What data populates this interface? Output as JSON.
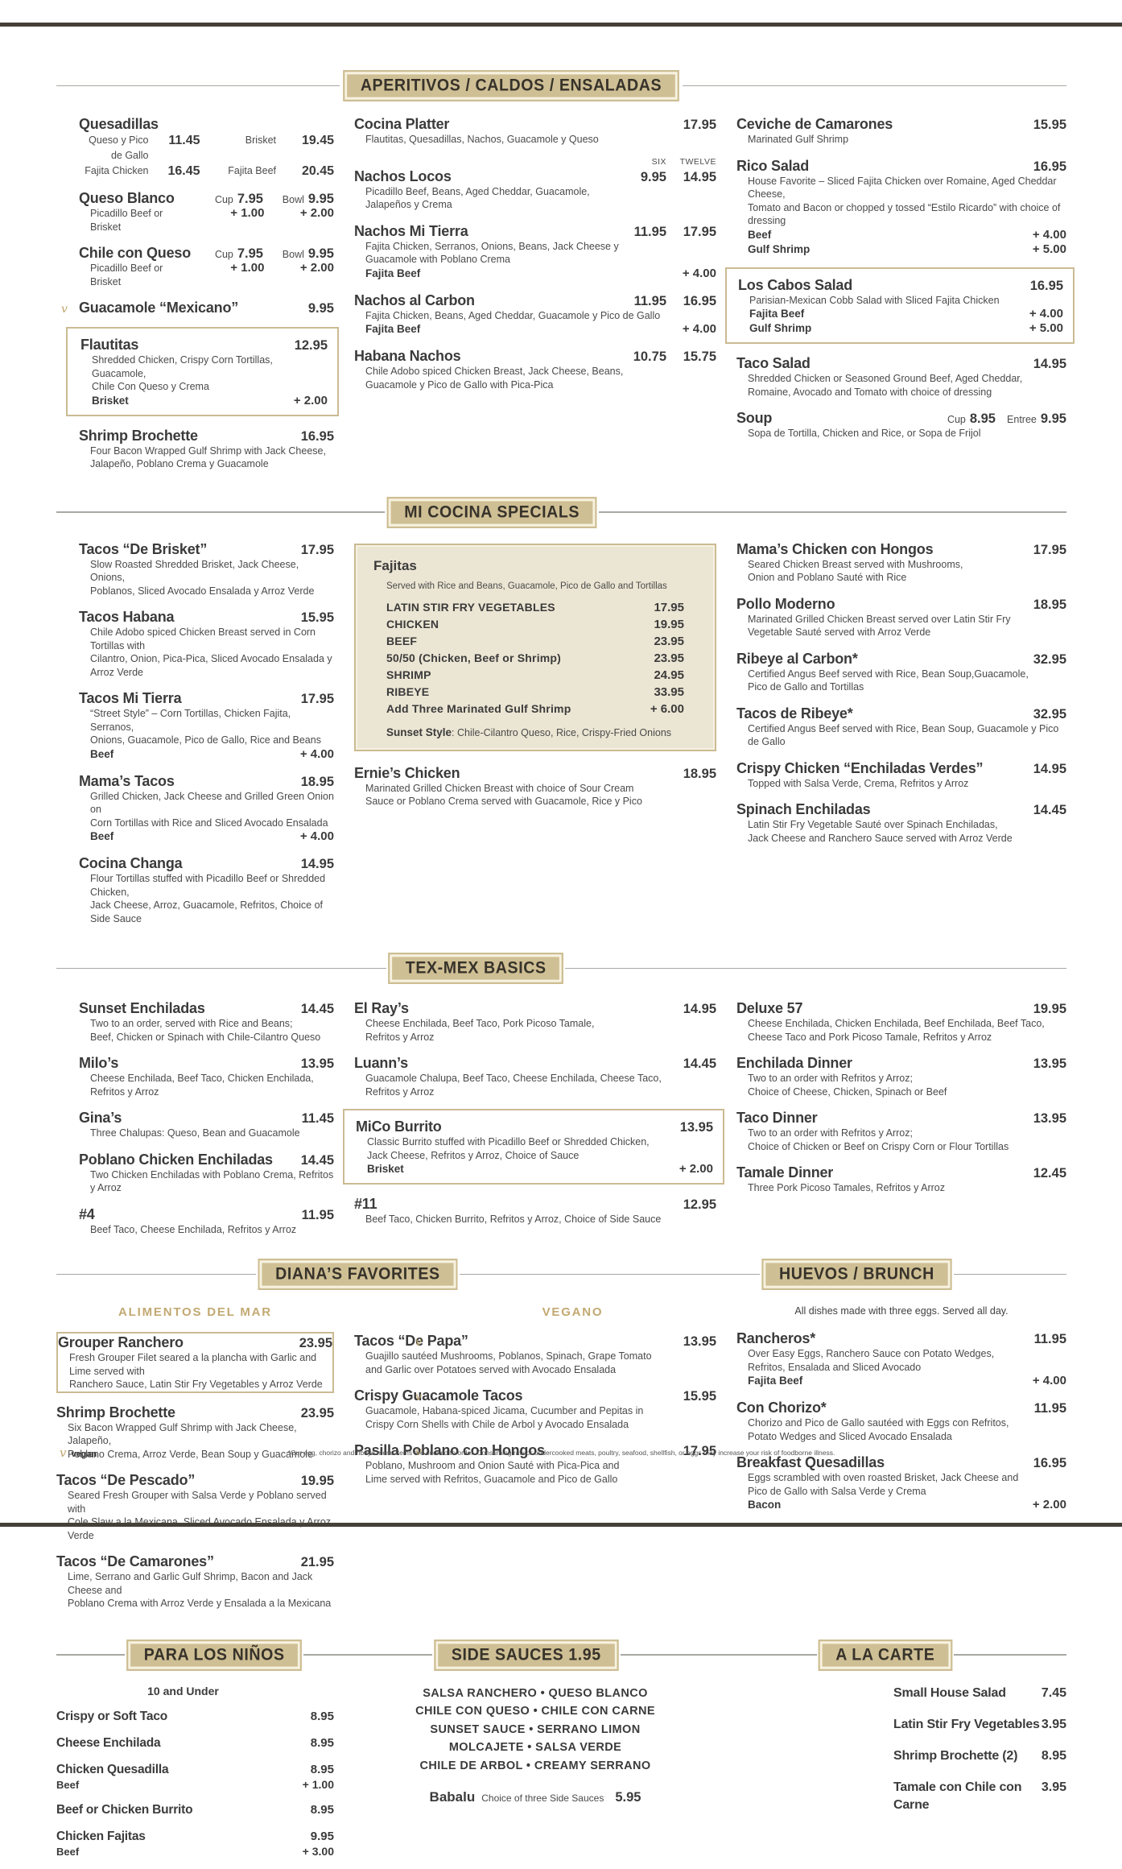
{
  "page": {
    "vegan_symbol": "v",
    "vegan_legend": "vegan",
    "disclaimer": "*Our egg, chorizo and ribeye menu items are cooked to order. Consuming raw or undercooked meats, poultry, seafood, shellfish, or eggs may increase your risk of foodborne illness."
  },
  "colors": {
    "tan_box": "#cfbf94",
    "tan_border": "#cbbb93",
    "tan_text": "#c2a972",
    "dark_text": "#3b3b3b",
    "bar": "#454038"
  },
  "headers": {
    "aperitivos": "APERITIVOS / CALDOS / ENSALADAS",
    "cocina": "MI COCINA SPECIALS",
    "texmex": "TEX-MEX BASICS",
    "dianas": "DIANA’S FAVORITES",
    "huevos": "HUEVOS / BRUNCH",
    "ninos": "PARA LOS NIÑOS",
    "sauces": "SIDE SAUCES  1.95",
    "alacarte": "A LA CARTE"
  },
  "sub_headers": {
    "mar": "ALIMENTOS DEL MAR",
    "vegano": "VEGANO",
    "huevos_note": "All dishes made with three eggs. Served all day.",
    "ninos_note": "10 and Under"
  },
  "sections": {
    "top_left": [
      {
        "name": "Quesadillas",
        "price_rows": [
          [
            {
              "label": "Queso y Pico de Gallo",
              "value": "11.45"
            },
            {
              "label": "Brisket",
              "value": "19.45"
            }
          ],
          [
            {
              "label": "Fajita Chicken",
              "value": "16.45"
            },
            {
              "label": "Fajita Beef",
              "value": "20.45"
            }
          ]
        ]
      },
      {
        "name": "Queso Blanco",
        "prices": [
          {
            "label": "Cup",
            "value": "7.95"
          },
          {
            "label": "Bowl",
            "value": "9.95"
          }
        ],
        "desc": [
          "Picadillo Beef or Brisket"
        ],
        "desc_prices": [
          "+ 1.00",
          "+ 2.00"
        ]
      },
      {
        "name": "Chile con Queso",
        "prices": [
          {
            "label": "Cup",
            "value": "7.95"
          },
          {
            "label": "Bowl",
            "value": "9.95"
          }
        ],
        "desc": [
          "Picadillo Beef or Brisket"
        ],
        "desc_prices": [
          "+ 1.00",
          "+ 2.00"
        ]
      },
      {
        "name": "Guacamole “Mexicano”",
        "vegan": true,
        "price": "9.95"
      },
      {
        "name": "Flautitas",
        "boxed": true,
        "price": "12.95",
        "desc": [
          "Shredded Chicken, Crispy Corn Tortillas, Guacamole,",
          "Chile Con Queso y Crema"
        ],
        "options": [
          {
            "name": "Brisket",
            "price": "+ 2.00"
          }
        ]
      },
      {
        "name": "Shrimp Brochette",
        "price": "16.95",
        "desc": [
          "Four Bacon Wrapped Gulf Shrimp with Jack Cheese,",
          "Jalapeño, Poblano Crema y Guacamole"
        ]
      }
    ],
    "aperitivos": [
      {
        "name": "Cocina Platter",
        "price": "17.95",
        "desc": [
          "Flautitas, Quesadillas, Nachos, Guacamole y Queso"
        ]
      },
      {
        "name": "Nachos Locos",
        "price_header": [
          "SIX",
          "TWELVE"
        ],
        "prices2": [
          "9.95",
          "14.95"
        ],
        "desc": [
          "Picadillo Beef, Beans, Aged Cheddar, Guacamole,",
          "Jalapeños y Crema"
        ]
      },
      {
        "name": "Nachos Mi Tierra",
        "prices2": [
          "11.95",
          "17.95"
        ],
        "desc": [
          "Fajita Chicken, Serranos, Onions, Beans, Jack Cheese y",
          "Guacamole with Poblano Crema"
        ],
        "options": [
          {
            "name": "Fajita Beef",
            "price": "+ 4.00"
          }
        ]
      },
      {
        "name": "Nachos al Carbon",
        "prices2": [
          "11.95",
          "16.95"
        ],
        "desc": [
          "Fajita Chicken, Beans, Aged Cheddar, Guacamole y Pico de Gallo"
        ],
        "options": [
          {
            "name": "Fajita Beef",
            "price": "+ 4.00"
          }
        ]
      },
      {
        "name": "Habana Nachos",
        "prices2": [
          "10.75",
          "15.75"
        ],
        "desc": [
          "Chile Adobo spiced Chicken Breast, Jack Cheese, Beans,",
          "Guacamole y Pico de Gallo with Pica-Pica"
        ]
      }
    ],
    "ensaladas": [
      {
        "name": "Ceviche de Camarones",
        "price": "15.95",
        "desc": [
          "Marinated Gulf Shrimp"
        ]
      },
      {
        "name": "Rico Salad",
        "price": "16.95",
        "desc": [
          "House Favorite – Sliced Fajita Chicken over Romaine, Aged Cheddar Cheese,",
          "Tomato and Bacon or chopped y tossed “Estilo Ricardo” with choice of dressing"
        ],
        "options": [
          {
            "name": "Beef",
            "price": "+ 4.00"
          },
          {
            "name": "Gulf Shrimp",
            "price": "+ 5.00"
          }
        ]
      },
      {
        "name": "Los Cabos Salad",
        "boxed": true,
        "price": "16.95",
        "desc": [
          "Parisian-Mexican Cobb Salad with Sliced Fajita Chicken"
        ],
        "options": [
          {
            "name": "Fajita Beef",
            "price": "+ 4.00"
          },
          {
            "name": "Gulf Shrimp",
            "price": "+ 5.00"
          }
        ]
      },
      {
        "name": "Taco Salad",
        "price": "14.95",
        "desc": [
          "Shredded Chicken or Seasoned Ground Beef, Aged Cheddar,",
          "Romaine, Avocado and Tomato with choice of dressing"
        ]
      },
      {
        "name": "Soup",
        "prices": [
          {
            "label": "Cup",
            "value": "8.95"
          },
          {
            "label": "Entree",
            "value": "9.95"
          }
        ],
        "desc": [
          "Sopa de Tortilla, Chicken and Rice, or Sopa de Frijol"
        ]
      }
    ],
    "cocina_left": [
      {
        "name": "Tacos “De Brisket”",
        "price": "17.95",
        "desc": [
          "Slow Roasted Shredded Brisket, Jack Cheese, Onions,",
          "Poblanos, Sliced Avocado Ensalada y Arroz Verde"
        ]
      },
      {
        "name": "Tacos Habana",
        "price": "15.95",
        "desc": [
          "Chile Adobo spiced Chicken Breast served in Corn Tortillas with",
          "Cilantro, Onion, Pica-Pica, Sliced Avocado Ensalada y Arroz Verde"
        ]
      },
      {
        "name": "Tacos Mi Tierra",
        "price": "17.95",
        "desc": [
          "“Street Style” – Corn Tortillas, Chicken Fajita, Serranos,",
          "Onions, Guacamole, Pico de Gallo, Rice and Beans"
        ],
        "options": [
          {
            "name": "Beef",
            "price": "+ 4.00"
          }
        ]
      },
      {
        "name": "Mama’s Tacos",
        "price": "18.95",
        "desc": [
          "Grilled Chicken, Jack Cheese and Grilled Green Onion on",
          "Corn Tortillas with Rice and Sliced Avocado Ensalada"
        ],
        "options": [
          {
            "name": "Beef",
            "price": "+ 4.00"
          }
        ]
      },
      {
        "name": "Cocina Changa",
        "price": "14.95",
        "desc": [
          "Flour Tortillas stuffed with Picadillo Beef or Shredded Chicken,",
          "Jack Cheese, Arroz, Guacamole, Refritos, Choice of Side Sauce"
        ]
      }
    ],
    "fajitas_box": {
      "name": "Fajitas",
      "intro": "Served with Rice and Beans, Guacamole, Pico de Gallo and Tortillas",
      "rows": [
        [
          "LATIN STIR FRY VEGETABLES",
          "17.95"
        ],
        [
          "CHICKEN",
          "19.95"
        ],
        [
          "BEEF",
          "23.95"
        ],
        [
          "50/50 (Chicken, Beef or Shrimp)",
          "23.95"
        ],
        [
          "SHRIMP",
          "24.95"
        ],
        [
          "RIBEYE",
          "33.95"
        ],
        [
          "Add Three Marinated Gulf Shrimp",
          "+ 6.00"
        ]
      ],
      "footer_label": "Sunset Style",
      "footer_text": ": Chile-Cilantro Queso, Rice, Crispy-Fried Onions"
    },
    "cocina_mid": [
      {
        "name": "Ernie’s Chicken",
        "price": "18.95",
        "desc": [
          "Marinated Grilled Chicken Breast with choice of Sour Cream",
          "Sauce or Poblano Crema served with Guacamole, Rice y Pico"
        ]
      }
    ],
    "cocina_right": [
      {
        "name": "Mama’s Chicken con Hongos",
        "price": "17.95",
        "desc": [
          "Seared Chicken Breast served with Mushrooms,",
          "Onion and Poblano Sauté with Rice"
        ]
      },
      {
        "name": "Pollo Moderno",
        "price": "18.95",
        "desc": [
          "Marinated Grilled Chicken Breast served over Latin Stir Fry",
          "Vegetable Sauté served with Arroz Verde"
        ]
      },
      {
        "name": "Ribeye al Carbon*",
        "price": "32.95",
        "desc": [
          "Certified Angus Beef served with Rice, Bean Soup,Guacamole,",
          "Pico de Gallo and Tortillas"
        ]
      },
      {
        "name": "Tacos de Ribeye*",
        "price": "32.95",
        "desc": [
          "Certified Angus Beef served with Rice, Bean Soup, Guacamole y Pico de Gallo"
        ]
      },
      {
        "name": "Crispy Chicken “Enchiladas Verdes”",
        "price": "14.95",
        "desc": [
          "Topped with Salsa Verde, Crema, Refritos y Arroz"
        ]
      },
      {
        "name": "Spinach Enchiladas",
        "price": "14.45",
        "desc": [
          "Latin Stir Fry Vegetable Sauté over Spinach Enchiladas,",
          "Jack Cheese and Ranchero Sauce served with Arroz Verde"
        ]
      }
    ],
    "texmex_left": [
      {
        "name": "Sunset Enchiladas",
        "price": "14.45",
        "desc": [
          "Two to an order, served with Rice and Beans;",
          "Beef, Chicken or Spinach with Chile-Cilantro Queso"
        ]
      },
      {
        "name": "Milo’s",
        "price": "13.95",
        "desc": [
          "Cheese Enchilada, Beef Taco, Chicken Enchilada, Refritos y Arroz"
        ]
      },
      {
        "name": "Gina’s",
        "price": "11.45",
        "desc": [
          "Three Chalupas: Queso, Bean and Guacamole"
        ]
      },
      {
        "name": "Poblano Chicken Enchiladas",
        "price": "14.45",
        "desc": [
          "Two Chicken Enchiladas with Poblano Crema, Refritos y Arroz"
        ]
      },
      {
        "name": "#4",
        "price": "11.95",
        "desc": [
          "Beef Taco, Cheese Enchilada, Refritos y Arroz"
        ]
      }
    ],
    "texmex_mid": [
      {
        "name": "El Ray’s",
        "price": "14.95",
        "desc": [
          "Cheese Enchilada, Beef Taco, Pork Picoso Tamale,",
          "Refritos y Arroz"
        ]
      },
      {
        "name": "Luann’s",
        "price": "14.45",
        "desc": [
          "Guacamole Chalupa, Beef Taco, Cheese Enchilada, Cheese Taco,",
          "Refritos y Arroz"
        ]
      },
      {
        "name": "MiCo Burrito",
        "boxed": true,
        "price": "13.95",
        "desc": [
          "Classic Burrito stuffed with Picadillo Beef or Shredded Chicken,",
          "Jack Cheese, Refritos y Arroz, Choice of Sauce"
        ],
        "options": [
          {
            "name": "Brisket",
            "price": "+ 2.00"
          }
        ]
      },
      {
        "name": "#11",
        "price": "12.95",
        "desc": [
          "Beef Taco, Chicken Burrito, Refritos y Arroz, Choice of Side Sauce"
        ]
      }
    ],
    "texmex_right": [
      {
        "name": "Deluxe 57",
        "price": "19.95",
        "desc": [
          "Cheese Enchilada, Chicken Enchilada, Beef Enchilada, Beef Taco,",
          "Cheese Taco and Pork Picoso Tamale, Refritos y Arroz"
        ]
      },
      {
        "name": "Enchilada Dinner",
        "price": "13.95",
        "desc": [
          "Two to an order with Refritos y Arroz;",
          "Choice of Cheese, Chicken, Spinach or Beef"
        ]
      },
      {
        "name": "Taco Dinner",
        "price": "13.95",
        "desc": [
          "Two to an order with Refritos y Arroz;",
          "Choice of Chicken or Beef on Crispy Corn or Flour Tortillas"
        ]
      },
      {
        "name": "Tamale Dinner",
        "price": "12.45",
        "desc": [
          "Three Pork Picoso Tamales, Refritos y Arroz"
        ]
      }
    ],
    "mar": [
      {
        "name": "Grouper Ranchero",
        "boxed": true,
        "price": "23.95",
        "desc": [
          "Fresh Grouper Filet seared a la plancha with Garlic and Lime served with",
          "Ranchero Sauce, Latin Stir Fry Vegetables y Arroz Verde"
        ]
      },
      {
        "name": "Shrimp Brochette",
        "price": "23.95",
        "desc": [
          "Six Bacon Wrapped Gulf Shrimp with Jack Cheese, Jalapeño,",
          "Poblano Crema, Arroz Verde, Bean Soup y Guacamole"
        ]
      },
      {
        "name": "Tacos “De Pescado”",
        "price": "19.95",
        "desc": [
          "Seared Fresh Grouper with Salsa Verde y Poblano served with",
          "Cole Slaw a la Mexicana, Sliced Avocado Ensalada y Arroz Verde"
        ]
      },
      {
        "name": "Tacos “De Camarones”",
        "price": "21.95",
        "desc": [
          "Lime, Serrano and Garlic Gulf Shrimp, Bacon and Jack Cheese and",
          "Poblano Crema with Arroz Verde y Ensalada a la Mexicana"
        ]
      }
    ],
    "vegano": [
      {
        "name": "Tacos “De Papa”",
        "vegan": true,
        "price": "13.95",
        "desc": [
          "Guajillo sautéed Mushrooms, Poblanos, Spinach, Grape Tomato",
          "and Garlic over Potatoes served with Avocado Ensalada"
        ]
      },
      {
        "name": "Crispy Guacamole Tacos",
        "vegan": true,
        "price": "15.95",
        "desc": [
          "Guacamole, Habana-spiced Jicama, Cucumber and Pepitas  in",
          "Crispy Corn Shells with Chile de Arbol y Avocado Ensalada"
        ]
      },
      {
        "name": "Pasilla Poblano con Hongos",
        "vegan": true,
        "price": "17.95",
        "desc": [
          "Poblano, Mushroom and Onion Sauté with Pica-Pica and",
          "Lime served with Refritos, Guacamole and Pico de Gallo"
        ]
      }
    ],
    "huevos": [
      {
        "name": "Rancheros*",
        "price": "11.95",
        "desc": [
          "Over Easy Eggs, Ranchero Sauce con Potato Wedges,",
          "Refritos, Ensalada and Sliced Avocado"
        ],
        "options": [
          {
            "name": "Fajita Beef",
            "price": "+ 4.00"
          }
        ]
      },
      {
        "name": "Con Chorizo*",
        "price": "11.95",
        "desc": [
          "Chorizo and Pico de Gallo sautéed with Eggs con Refritos,",
          "Potato Wedges and Sliced Avocado Ensalada"
        ]
      },
      {
        "name": "Breakfast Quesadillas",
        "price": "16.95",
        "desc": [
          "Eggs scrambled with oven roasted Brisket, Jack Cheese and",
          "Pico de Gallo with Salsa Verde y Crema"
        ],
        "options": [
          {
            "name": "Bacon",
            "price": "+ 2.00"
          }
        ]
      }
    ],
    "ninos": [
      {
        "name": "Crispy or Soft Taco",
        "price": "8.95"
      },
      {
        "name": "Cheese Enchilada",
        "price": "8.95"
      },
      {
        "name": "Chicken Quesadilla",
        "price": "8.95",
        "options": [
          {
            "name": "Beef",
            "price": "+ 1.00"
          }
        ]
      },
      {
        "name": "Beef or Chicken Burrito",
        "price": "8.95"
      },
      {
        "name": "Chicken Fajitas",
        "price": "9.95",
        "options": [
          {
            "name": "Beef",
            "price": "+ 3.00"
          }
        ]
      }
    ],
    "sauces": {
      "lines": [
        "SALSA RANCHERO  •  QUESO BLANCO",
        "CHILE CON QUESO  •  CHILE CON CARNE",
        "SUNSET SAUCE  •  SERRANO LIMON",
        "MOLCAJETE  •  SALSA VERDE",
        "CHILE DE ARBOL  •  CREAMY SERRANO"
      ],
      "babalu_name": "Babalu",
      "babalu_desc": "Choice of three Side Sauces",
      "babalu_price": "5.95"
    },
    "alacarte": [
      {
        "name": "Small House Salad",
        "price": "7.45"
      },
      {
        "name": "Latin Stir Fry Vegetables",
        "price": "3.95"
      },
      {
        "name": "Shrimp Brochette (2)",
        "price": "8.95"
      },
      {
        "name": "Tamale con Chile con Carne",
        "price": "3.95"
      }
    ]
  }
}
